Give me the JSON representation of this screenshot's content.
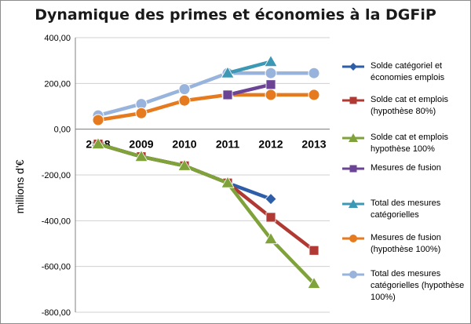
{
  "chart_data": {
    "type": "line",
    "title": "Dynamique des primes et économies à la DGFiP",
    "ylabel": "millions d'€",
    "xlabel": "",
    "categories": [
      "2008",
      "2009",
      "2010",
      "2011",
      "2012",
      "2013"
    ],
    "ylim": [
      -800,
      400
    ],
    "yticks": [
      "400,00",
      "200,00",
      "0,00",
      "-200,00",
      "-400,00",
      "-600,00",
      "-800,00"
    ],
    "ytick_values": [
      400,
      200,
      0,
      -200,
      -400,
      -600,
      -800
    ],
    "grid": true,
    "legend_position": "right",
    "series": [
      {
        "name": "Solde catégoriel et économies emplois",
        "color": "#2e5ea8",
        "marker": "diamond",
        "values": [
          -65,
          -120,
          -160,
          -235,
          -305,
          null
        ]
      },
      {
        "name": "Solde cat et emplois (hypothèse 80%)",
        "color": "#b03a33",
        "marker": "square",
        "values": [
          -65,
          -120,
          -160,
          -235,
          -385,
          -530
        ]
      },
      {
        "name": "Solde cat et emplois hypothèse 100%",
        "color": "#7fa33a",
        "marker": "triangle",
        "values": [
          -65,
          -120,
          -160,
          -235,
          -480,
          -675
        ]
      },
      {
        "name": "Mesures de fusion",
        "color": "#6b4496",
        "marker": "square",
        "values": [
          null,
          null,
          null,
          150,
          195,
          null
        ]
      },
      {
        "name": "Total des mesures catégorielles",
        "color": "#3c98b4",
        "marker": "triangle",
        "values": [
          null,
          null,
          null,
          245,
          295,
          null
        ]
      },
      {
        "name": "Mesures de fusion (hypothèse 100%)",
        "color": "#e57a1f",
        "marker": "circle",
        "values": [
          40,
          70,
          125,
          150,
          150,
          150
        ]
      },
      {
        "name": "Total des mesures catégorielles (hypothèse 100%)",
        "color": "#98b4dc",
        "marker": "circle",
        "values": [
          60,
          110,
          175,
          245,
          245,
          245
        ]
      }
    ]
  }
}
